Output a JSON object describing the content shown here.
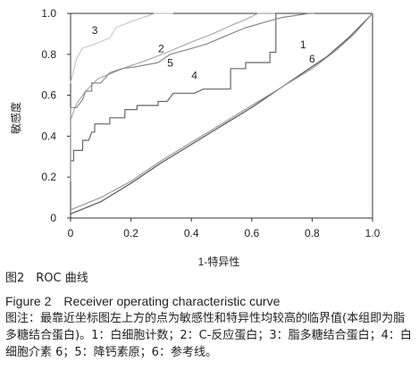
{
  "chart_data": {
    "type": "line",
    "title": "",
    "xlabel": "1-特异性",
    "ylabel": "敏感度",
    "xlim": [
      0,
      1
    ],
    "ylim": [
      0,
      1
    ],
    "xticks": [
      "0",
      "0.2",
      "0.4",
      "0.6",
      "0.8",
      "1.0"
    ],
    "yticks": [
      "0",
      "0.2",
      "0.4",
      "0.6",
      "0.8",
      "1.0"
    ],
    "grid": false,
    "legend": "inline numbers near curves",
    "series": [
      {
        "name": "1",
        "color": "#555555",
        "points": [
          [
            0,
            0.02
          ],
          [
            0.1,
            0.08
          ],
          [
            0.2,
            0.17
          ],
          [
            0.3,
            0.27
          ],
          [
            0.4,
            0.36
          ],
          [
            0.5,
            0.45
          ],
          [
            0.6,
            0.54
          ],
          [
            0.7,
            0.64
          ],
          [
            0.78,
            0.72
          ],
          [
            0.85,
            0.79
          ],
          [
            0.92,
            0.88
          ],
          [
            1,
            1
          ]
        ]
      },
      {
        "name": "2",
        "color": "#aaaaaa",
        "points": [
          [
            0,
            0.48
          ],
          [
            0.02,
            0.56
          ],
          [
            0.05,
            0.62
          ],
          [
            0.09,
            0.68
          ],
          [
            0.14,
            0.71
          ],
          [
            0.19,
            0.74
          ],
          [
            0.25,
            0.77
          ],
          [
            0.32,
            0.81
          ],
          [
            0.4,
            0.86
          ],
          [
            0.47,
            0.9
          ],
          [
            0.53,
            0.94
          ],
          [
            0.58,
            0.97
          ],
          [
            0.62,
            1
          ],
          [
            0.68,
            1
          ]
        ]
      },
      {
        "name": "3",
        "color": "#c8c8c8",
        "points": [
          [
            0,
            0.66
          ],
          [
            0.02,
            0.78
          ],
          [
            0.04,
            0.83
          ],
          [
            0.08,
            0.85
          ],
          [
            0.13,
            0.88
          ],
          [
            0.15,
            0.93
          ],
          [
            0.2,
            0.96
          ],
          [
            0.24,
            0.98
          ],
          [
            0.28,
            1
          ],
          [
            0.34,
            1
          ]
        ]
      },
      {
        "name": "4",
        "color": "#666666",
        "points": [
          [
            0,
            0.28
          ],
          [
            0.01,
            0.28
          ],
          [
            0.01,
            0.33
          ],
          [
            0.04,
            0.33
          ],
          [
            0.04,
            0.38
          ],
          [
            0.06,
            0.38
          ],
          [
            0.07,
            0.42
          ],
          [
            0.08,
            0.42
          ],
          [
            0.08,
            0.46
          ],
          [
            0.13,
            0.46
          ],
          [
            0.13,
            0.49
          ],
          [
            0.18,
            0.49
          ],
          [
            0.18,
            0.53
          ],
          [
            0.22,
            0.53
          ],
          [
            0.22,
            0.55
          ],
          [
            0.29,
            0.55
          ],
          [
            0.29,
            0.57
          ],
          [
            0.32,
            0.57
          ],
          [
            0.34,
            0.61
          ],
          [
            0.41,
            0.61
          ],
          [
            0.44,
            0.63
          ],
          [
            0.53,
            0.63
          ],
          [
            0.53,
            0.73
          ],
          [
            0.58,
            0.73
          ],
          [
            0.58,
            0.76
          ],
          [
            0.66,
            0.76
          ],
          [
            0.66,
            0.81
          ],
          [
            0.68,
            0.81
          ],
          [
            0.68,
            1
          ],
          [
            0.7,
            1
          ]
        ]
      },
      {
        "name": "5",
        "color": "#888888",
        "points": [
          [
            0,
            0.18
          ],
          [
            0,
            0.54
          ],
          [
            0.02,
            0.54
          ],
          [
            0.04,
            0.58
          ],
          [
            0.05,
            0.62
          ],
          [
            0.07,
            0.62
          ],
          [
            0.07,
            0.66
          ],
          [
            0.1,
            0.66
          ],
          [
            0.13,
            0.71
          ],
          [
            0.17,
            0.73
          ],
          [
            0.22,
            0.74
          ],
          [
            0.29,
            0.76
          ],
          [
            0.33,
            0.8
          ],
          [
            0.38,
            0.82
          ],
          [
            0.45,
            0.85
          ],
          [
            0.53,
            0.9
          ],
          [
            0.58,
            0.93
          ],
          [
            0.65,
            0.96
          ],
          [
            0.7,
            0.98
          ],
          [
            0.79,
            1
          ],
          [
            0.81,
            1
          ]
        ]
      },
      {
        "name": "6",
        "color": "#999999",
        "points": [
          [
            0,
            0.04
          ],
          [
            0.1,
            0.1
          ],
          [
            0.2,
            0.18
          ],
          [
            0.3,
            0.28
          ],
          [
            0.4,
            0.37
          ],
          [
            0.5,
            0.46
          ],
          [
            0.6,
            0.55
          ],
          [
            0.7,
            0.64
          ],
          [
            0.8,
            0.73
          ],
          [
            0.88,
            0.82
          ],
          [
            0.94,
            0.9
          ],
          [
            1,
            1
          ]
        ]
      }
    ],
    "annotations": [
      {
        "text": "1",
        "x": 0.77,
        "y": 0.83
      },
      {
        "text": "2",
        "x": 0.3,
        "y": 0.81
      },
      {
        "text": "3",
        "x": 0.08,
        "y": 0.9
      },
      {
        "text": "4",
        "x": 0.41,
        "y": 0.68
      },
      {
        "text": "5",
        "x": 0.33,
        "y": 0.74
      },
      {
        "text": "6",
        "x": 0.8,
        "y": 0.76
      }
    ]
  },
  "caption": {
    "figure_cn": "图2　ROC 曲线",
    "figure_en": "Figure 2　Receiver operating characteristic curve",
    "note": "图注：最靠近坐标图左上方的点为敏感性和特异性均较高的临界值(本组即为脂多糖结合蛋白)。1：白细胞计数；2：C-反应蛋白；3：脂多糖结合蛋白；4：白细胞介素 6；5：降钙素原；6：参考线。"
  }
}
